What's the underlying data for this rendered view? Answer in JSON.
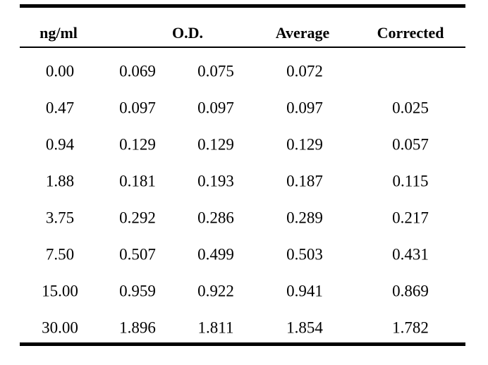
{
  "table": {
    "headers": {
      "conc": "ng/ml",
      "od": "O.D.",
      "average": "Average",
      "corrected": "Corrected"
    },
    "rows": [
      [
        "0.00",
        "0.069",
        "0.075",
        "0.072",
        ""
      ],
      [
        "0.47",
        "0.097",
        "0.097",
        "0.097",
        "0.025"
      ],
      [
        "0.94",
        "0.129",
        "0.129",
        "0.129",
        "0.057"
      ],
      [
        "1.88",
        "0.181",
        "0.193",
        "0.187",
        "0.115"
      ],
      [
        "3.75",
        "0.292",
        "0.286",
        "0.289",
        "0.217"
      ],
      [
        "7.50",
        "0.507",
        "0.499",
        "0.503",
        "0.431"
      ],
      [
        "15.00",
        "0.959",
        "0.922",
        "0.941",
        "0.869"
      ],
      [
        "30.00",
        "1.896",
        "1.811",
        "1.854",
        "1.782"
      ]
    ]
  }
}
